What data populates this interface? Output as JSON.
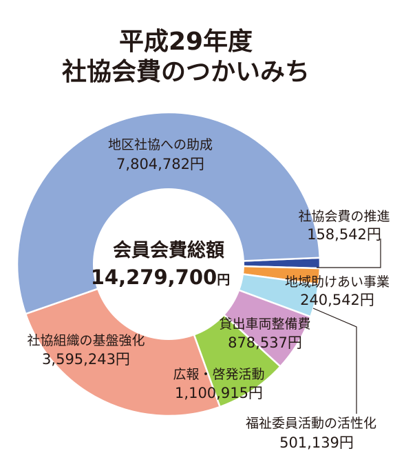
{
  "chart_data": {
    "type": "pie",
    "title_line1": "平成29年度",
    "title_line2": "社協会費のつかいみち",
    "center_label": "会員会費総額",
    "total": "14,279,700",
    "total_unit": "円",
    "slices": [
      {
        "label": "社協会費の推進",
        "value": 158542,
        "display": "158,542円",
        "color": "#2e4a9e"
      },
      {
        "label": "地域助けあい事業",
        "value": 240542,
        "display": "240,542円",
        "color": "#f29a3f"
      },
      {
        "label": "福祉委員活動の活性化",
        "value": 501139,
        "display": "501,139円",
        "color": "#a9dcef"
      },
      {
        "label": "貸出車両整備費",
        "value": 878537,
        "display": "878,537円",
        "color": "#d39ccc"
      },
      {
        "label": "広報・啓発活動",
        "value": 1100915,
        "display": "1,100,915円",
        "color": "#9bcf4b"
      },
      {
        "label": "社協組織の基盤強化",
        "value": 3595243,
        "display": "3,595,243円",
        "color": "#f2a08c"
      },
      {
        "label": "地区社協への助成",
        "value": 7804782,
        "display": "7,804,782円",
        "color": "#8fa9d8"
      }
    ]
  }
}
